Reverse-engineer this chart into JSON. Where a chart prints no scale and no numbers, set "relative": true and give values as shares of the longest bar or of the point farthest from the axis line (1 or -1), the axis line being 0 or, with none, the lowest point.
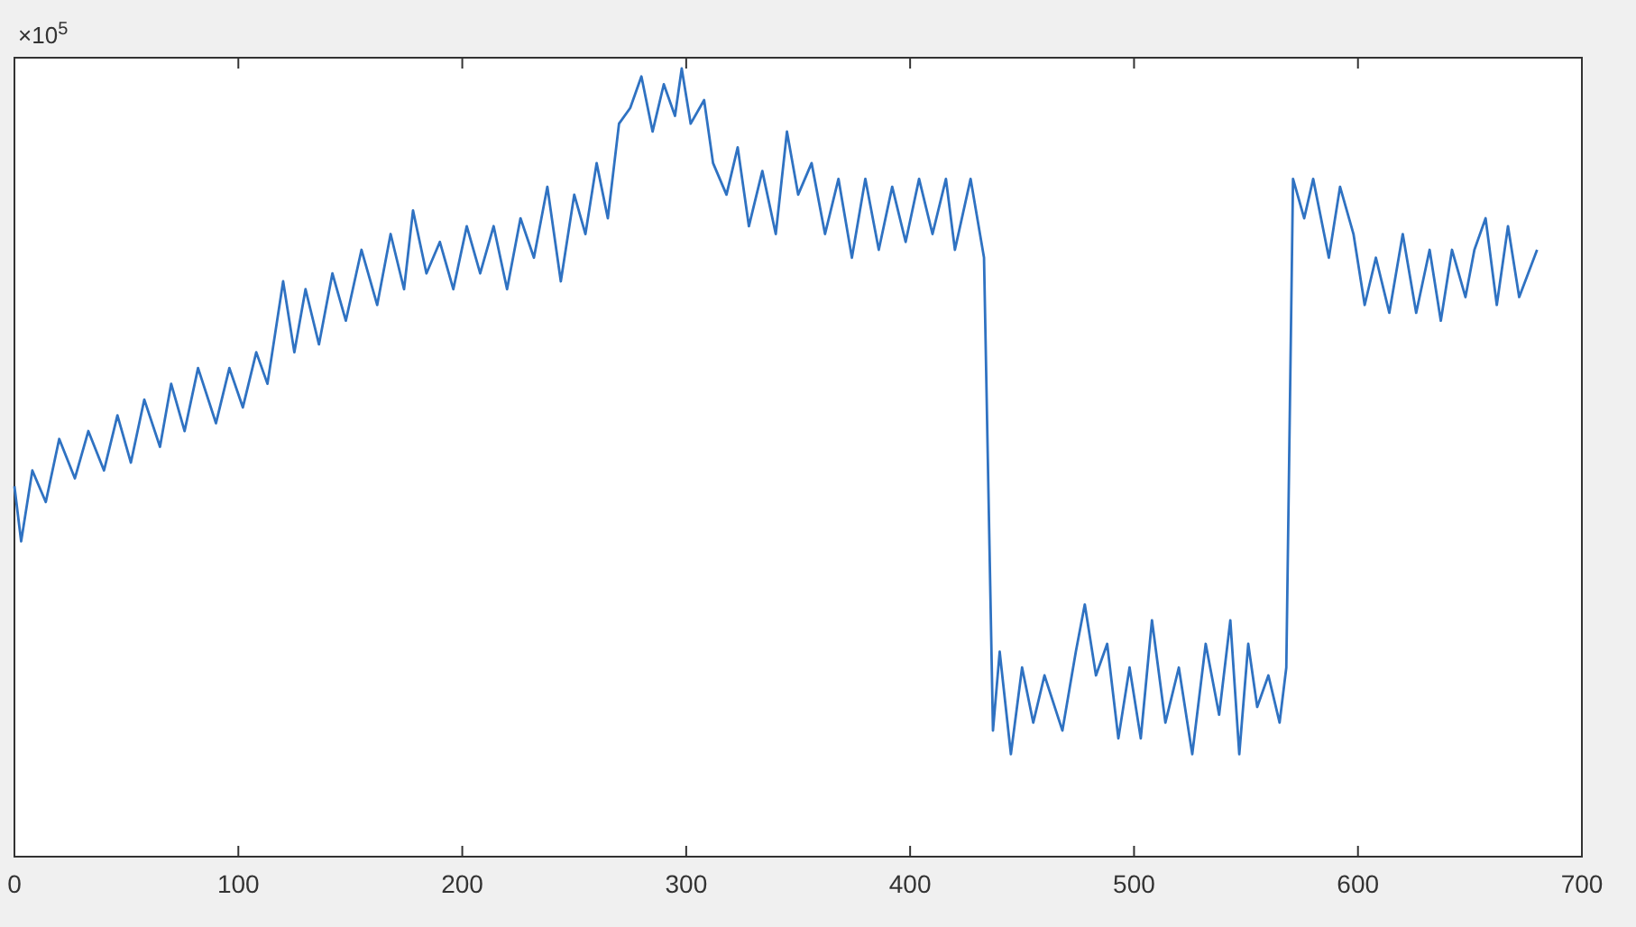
{
  "chart_data": {
    "type": "line",
    "relative": true,
    "xlim": [
      0,
      700
    ],
    "xticks": [
      0,
      100,
      200,
      300,
      400,
      500,
      600,
      700
    ],
    "grid": false,
    "marker": "none",
    "line_style": "solid",
    "annotations": [
      "×10$^{5}$"
    ],
    "series": [
      {
        "color": "#2f72c2",
        "x": [
          0,
          3,
          8,
          14,
          20,
          27,
          33,
          40,
          46,
          52,
          58,
          65,
          70,
          76,
          82,
          90,
          96,
          102,
          108,
          113,
          120,
          125,
          130,
          136,
          142,
          148,
          155,
          162,
          168,
          174,
          178,
          184,
          190,
          196,
          202,
          208,
          214,
          220,
          226,
          232,
          238,
          244,
          250,
          255,
          260,
          265,
          270,
          275,
          280,
          285,
          290,
          295,
          298,
          302,
          308,
          312,
          318,
          323,
          328,
          334,
          340,
          345,
          350,
          356,
          362,
          368,
          374,
          380,
          386,
          392,
          398,
          404,
          410,
          416,
          420,
          427,
          433,
          437,
          440,
          445,
          450,
          455,
          460,
          468,
          474,
          478,
          483,
          488,
          493,
          498,
          503,
          508,
          514,
          520,
          526,
          532,
          538,
          543,
          547,
          551,
          555,
          560,
          565,
          568,
          571,
          576,
          580,
          587,
          592,
          598,
          603,
          608,
          614,
          620,
          626,
          632,
          637,
          642,
          648,
          652,
          657,
          662,
          667,
          672,
          676,
          680
        ],
        "values": [
          0.47,
          0.4,
          0.49,
          0.45,
          0.53,
          0.48,
          0.54,
          0.49,
          0.56,
          0.5,
          0.58,
          0.52,
          0.6,
          0.54,
          0.62,
          0.55,
          0.62,
          0.57,
          0.64,
          0.6,
          0.73,
          0.64,
          0.72,
          0.65,
          0.74,
          0.68,
          0.77,
          0.7,
          0.79,
          0.72,
          0.82,
          0.74,
          0.78,
          0.72,
          0.8,
          0.74,
          0.8,
          0.72,
          0.81,
          0.76,
          0.85,
          0.73,
          0.84,
          0.79,
          0.88,
          0.81,
          0.93,
          0.95,
          0.99,
          0.92,
          0.98,
          0.94,
          1.0,
          0.93,
          0.96,
          0.88,
          0.84,
          0.9,
          0.8,
          0.87,
          0.79,
          0.92,
          0.84,
          0.88,
          0.79,
          0.86,
          0.76,
          0.86,
          0.77,
          0.85,
          0.78,
          0.86,
          0.79,
          0.86,
          0.77,
          0.86,
          0.76,
          0.16,
          0.26,
          0.13,
          0.24,
          0.17,
          0.23,
          0.16,
          0.26,
          0.32,
          0.23,
          0.27,
          0.15,
          0.24,
          0.15,
          0.3,
          0.17,
          0.24,
          0.13,
          0.27,
          0.18,
          0.3,
          0.13,
          0.27,
          0.19,
          0.23,
          0.17,
          0.24,
          0.86,
          0.81,
          0.86,
          0.76,
          0.85,
          0.79,
          0.7,
          0.76,
          0.69,
          0.79,
          0.69,
          0.77,
          0.68,
          0.77,
          0.71,
          0.77,
          0.81,
          0.7,
          0.8,
          0.71,
          0.74,
          0.77
        ]
      }
    ]
  }
}
